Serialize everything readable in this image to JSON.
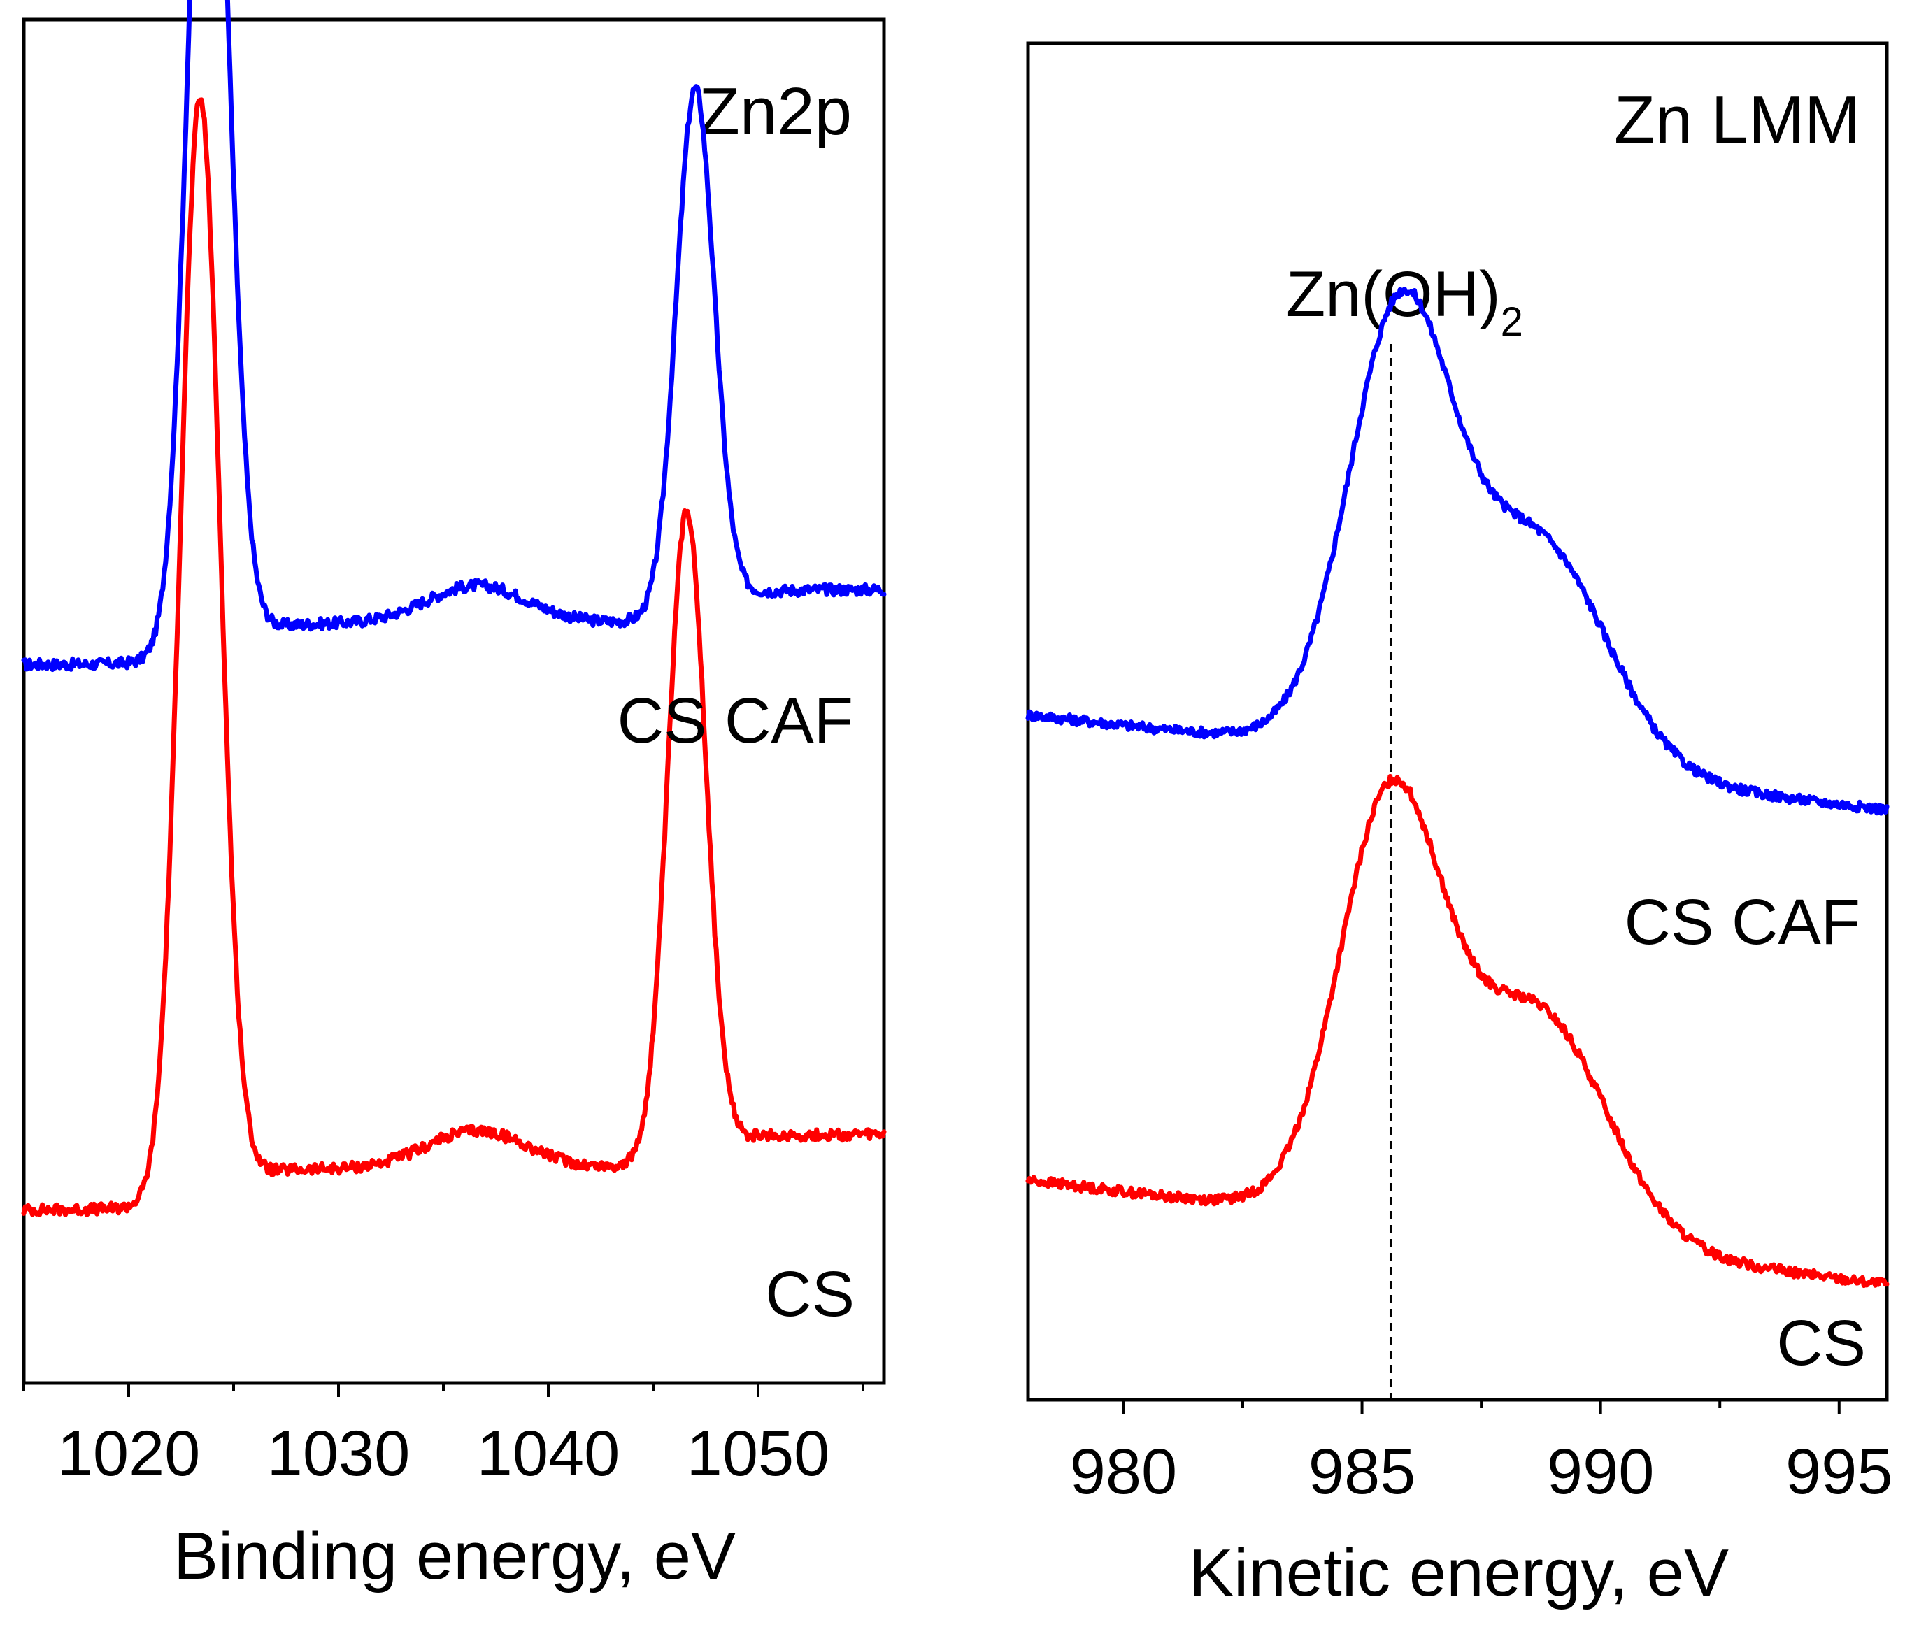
{
  "chart_data": [
    {
      "type": "line",
      "title": "Zn2p",
      "xlabel": "Binding energy, eV",
      "ylabel": "",
      "xlim": [
        1015,
        1056
      ],
      "ylim": [
        0,
        1
      ],
      "xticks": [
        1020,
        1030,
        1040,
        1050
      ],
      "xtick_labels": [
        "1020",
        "1030",
        "1040",
        "1050"
      ],
      "minor_xticks": [
        1015,
        1025,
        1035,
        1045,
        1055
      ],
      "y_axis_labels_shown": false,
      "grid": false,
      "series": [
        {
          "name": "CS CAF",
          "color": "#0000ff",
          "baseline": 0.527,
          "tail": 0.127,
          "peaks": [
            {
              "center": 1023.8,
              "height": 0.74,
              "width": 0.95
            },
            {
              "center": 1047.0,
              "height": 0.38,
              "width": 0.9
            },
            {
              "center": 1036.6,
              "height": 0.028,
              "width": 2.4
            }
          ],
          "steps": [
            {
              "center": 1023.8,
              "height": 0.03
            },
            {
              "center": 1047.0,
              "height": 0.025
            }
          ]
        },
        {
          "name": "CS",
          "color": "#ff0000",
          "baseline": 0.127,
          "tail": 0.127,
          "peaks": [
            {
              "center": 1023.4,
              "height": 0.8,
              "width": 0.95
            },
            {
              "center": 1046.6,
              "height": 0.47,
              "width": 0.9
            },
            {
              "center": 1036.6,
              "height": 0.028,
              "width": 2.4
            }
          ],
          "steps": [
            {
              "center": 1023.4,
              "height": 0.03
            },
            {
              "center": 1046.6,
              "height": 0.025
            }
          ]
        }
      ]
    },
    {
      "type": "line",
      "title": "Zn LMM",
      "xlabel": "Kinetic energy, eV",
      "ylabel": "",
      "xlim": [
        978,
        996
      ],
      "ylim": [
        0,
        1
      ],
      "xticks": [
        980,
        985,
        990,
        995
      ],
      "xtick_labels": [
        "980",
        "985",
        "990",
        "995"
      ],
      "minor_xticks": [
        982.5,
        987.5,
        992.5
      ],
      "y_axis_labels_shown": false,
      "grid": false,
      "annotations": [
        {
          "text": "Zn(OH)",
          "subscript": "2",
          "x": 985.6,
          "type": "vertical-dashed-line"
        }
      ],
      "series": [
        {
          "name": "CS CAF",
          "color": "#0000ff",
          "start": 0.505,
          "end": 0.435,
          "peaks": [
            {
              "center": 985.8,
              "height": 0.275,
              "width": 1.05
            },
            {
              "center": 988.7,
              "height": 0.12,
              "width": 1.4
            }
          ],
          "shoulder_rise": 0.06
        },
        {
          "name": "CS",
          "color": "#ff0000",
          "start": 0.162,
          "end": 0.085,
          "peaks": [
            {
              "center": 985.6,
              "height": 0.265,
              "width": 1.05
            },
            {
              "center": 988.7,
              "height": 0.12,
              "width": 1.4
            }
          ],
          "shoulder_rise": 0.06
        }
      ]
    }
  ]
}
